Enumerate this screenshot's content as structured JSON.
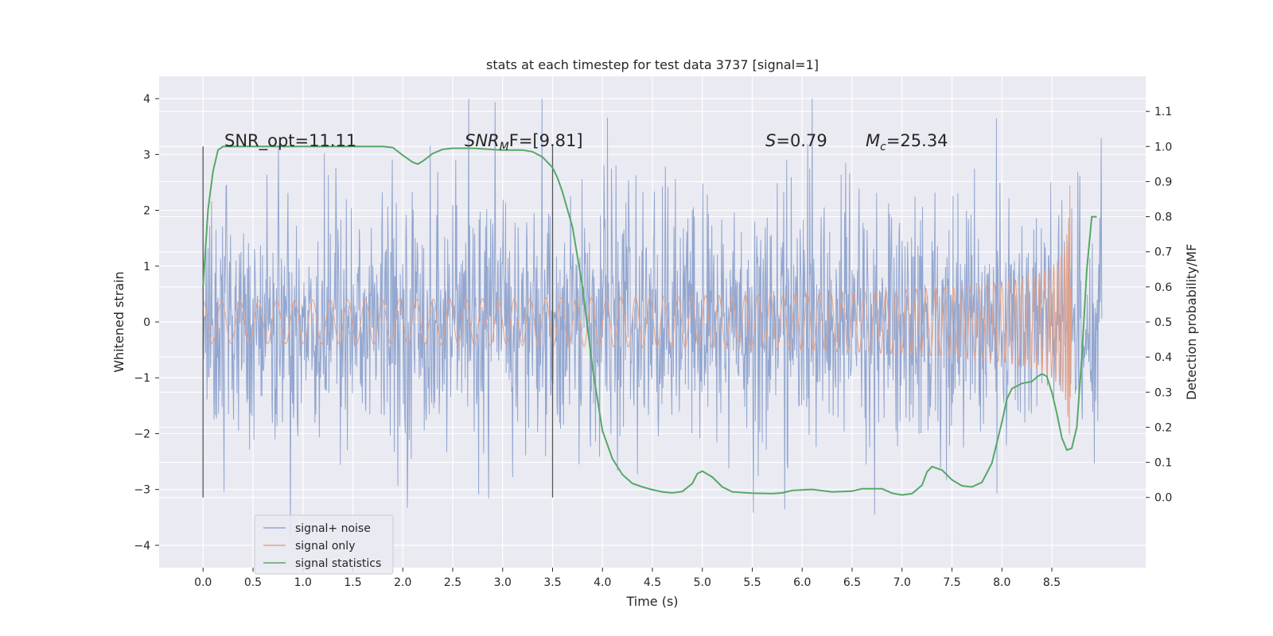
{
  "chart_data": {
    "type": "line",
    "title": "stats at each timestep for test data 3737 [signal=1]",
    "xlabel": "Time (s)",
    "ylabel_left": "Whitened strain",
    "ylabel_right": "Detection probability/MF",
    "xlim": [
      -0.44,
      9.44
    ],
    "ylim_left": [
      -4.4,
      4.4
    ],
    "ylim_right": [
      -0.2,
      1.2
    ],
    "x_ticks": [
      0.0,
      0.5,
      1.0,
      1.5,
      2.0,
      2.5,
      3.0,
      3.5,
      4.0,
      4.5,
      5.0,
      5.5,
      6.0,
      6.5,
      7.0,
      7.5,
      8.0,
      8.5
    ],
    "x_tick_labels": [
      "0.0",
      "0.5",
      "1.0",
      "1.5",
      "2.0",
      "2.5",
      "3.0",
      "3.5",
      "4.0",
      "4.5",
      "5.0",
      "5.5",
      "6.0",
      "6.5",
      "7.0",
      "7.5",
      "8.0",
      "8.5"
    ],
    "y_left_ticks": [
      4,
      3,
      2,
      1,
      0,
      -1,
      -2,
      -3,
      -4
    ],
    "y_left_tick_labels": [
      "4",
      "3",
      "2",
      "1",
      "0",
      "−1",
      "−2",
      "−3",
      "−4"
    ],
    "y_right_ticks": [
      1.1,
      1.0,
      0.9,
      0.8,
      0.7,
      0.6,
      0.5,
      0.4,
      0.3,
      0.2,
      0.1,
      0.0
    ],
    "y_right_tick_labels": [
      "1.1",
      "1.0",
      "0.9",
      "0.8",
      "0.7",
      "0.6",
      "0.5",
      "0.4",
      "0.3",
      "0.2",
      "0.1",
      "0.0"
    ],
    "grid": true,
    "legend_placement": "lower-left",
    "annotations": {
      "snr_opt": "SNR_opt=11.11",
      "snr_mf_main": "SNR",
      "snr_mf_sub": "M",
      "snr_mf_rest": "F=[9.81]",
      "s_main": "S",
      "s_rest": "=0.79",
      "mc_main": "M",
      "mc_sub": "c",
      "mc_rest": "=25.34"
    },
    "vertical_markers": [
      0.0,
      3.5
    ],
    "series": [
      {
        "name": "signal+ noise",
        "color": "#92a6cf",
        "axis": "left",
        "description": "whitened noise from 0 to 9.0 s",
        "x_range": [
          0.0,
          9.0
        ],
        "typical_amplitude": 1.3,
        "peak_range": [
          -3.9,
          4.0
        ]
      },
      {
        "name": "signal only",
        "color": "#e3a187",
        "axis": "left",
        "description": "chirp signal ending near 8.68 s",
        "x_range": [
          0.0,
          8.7
        ],
        "merger_time": 8.68,
        "peak_amplitude": 2.6
      },
      {
        "name": "signal statistics",
        "color": "#55a868",
        "axis": "right",
        "x": [
          0.0,
          0.05,
          0.1,
          0.15,
          0.2,
          0.3,
          0.5,
          1.0,
          1.5,
          1.8,
          1.9,
          2.0,
          2.1,
          2.15,
          2.2,
          2.3,
          2.4,
          2.5,
          2.7,
          3.0,
          3.2,
          3.3,
          3.4,
          3.5,
          3.55,
          3.6,
          3.7,
          3.8,
          3.9,
          4.0,
          4.1,
          4.2,
          4.3,
          4.4,
          4.5,
          4.6,
          4.7,
          4.8,
          4.9,
          4.95,
          5.0,
          5.1,
          5.2,
          5.3,
          5.5,
          5.7,
          5.8,
          5.9,
          6.1,
          6.3,
          6.5,
          6.6,
          6.8,
          6.9,
          7.0,
          7.1,
          7.2,
          7.25,
          7.3,
          7.4,
          7.5,
          7.6,
          7.7,
          7.8,
          7.9,
          8.0,
          8.05,
          8.1,
          8.2,
          8.3,
          8.35,
          8.4,
          8.45,
          8.5,
          8.55,
          8.6,
          8.65,
          8.7,
          8.75,
          8.8,
          8.85,
          8.9,
          8.95
        ],
        "values": [
          0.6,
          0.82,
          0.93,
          0.99,
          1.0,
          1.0,
          1.0,
          1.0,
          1.0,
          1.0,
          0.997,
          0.975,
          0.955,
          0.95,
          0.958,
          0.98,
          0.992,
          0.995,
          0.995,
          0.99,
          0.99,
          0.985,
          0.97,
          0.94,
          0.91,
          0.87,
          0.77,
          0.6,
          0.37,
          0.19,
          0.11,
          0.065,
          0.04,
          0.03,
          0.022,
          0.016,
          0.013,
          0.017,
          0.04,
          0.068,
          0.075,
          0.058,
          0.03,
          0.016,
          0.012,
          0.011,
          0.013,
          0.02,
          0.023,
          0.016,
          0.018,
          0.025,
          0.025,
          0.012,
          0.007,
          0.011,
          0.035,
          0.073,
          0.088,
          0.078,
          0.05,
          0.033,
          0.03,
          0.043,
          0.098,
          0.215,
          0.28,
          0.31,
          0.325,
          0.33,
          0.343,
          0.352,
          0.345,
          0.3,
          0.24,
          0.17,
          0.135,
          0.14,
          0.2,
          0.4,
          0.65,
          0.8,
          0.8
        ]
      }
    ]
  }
}
